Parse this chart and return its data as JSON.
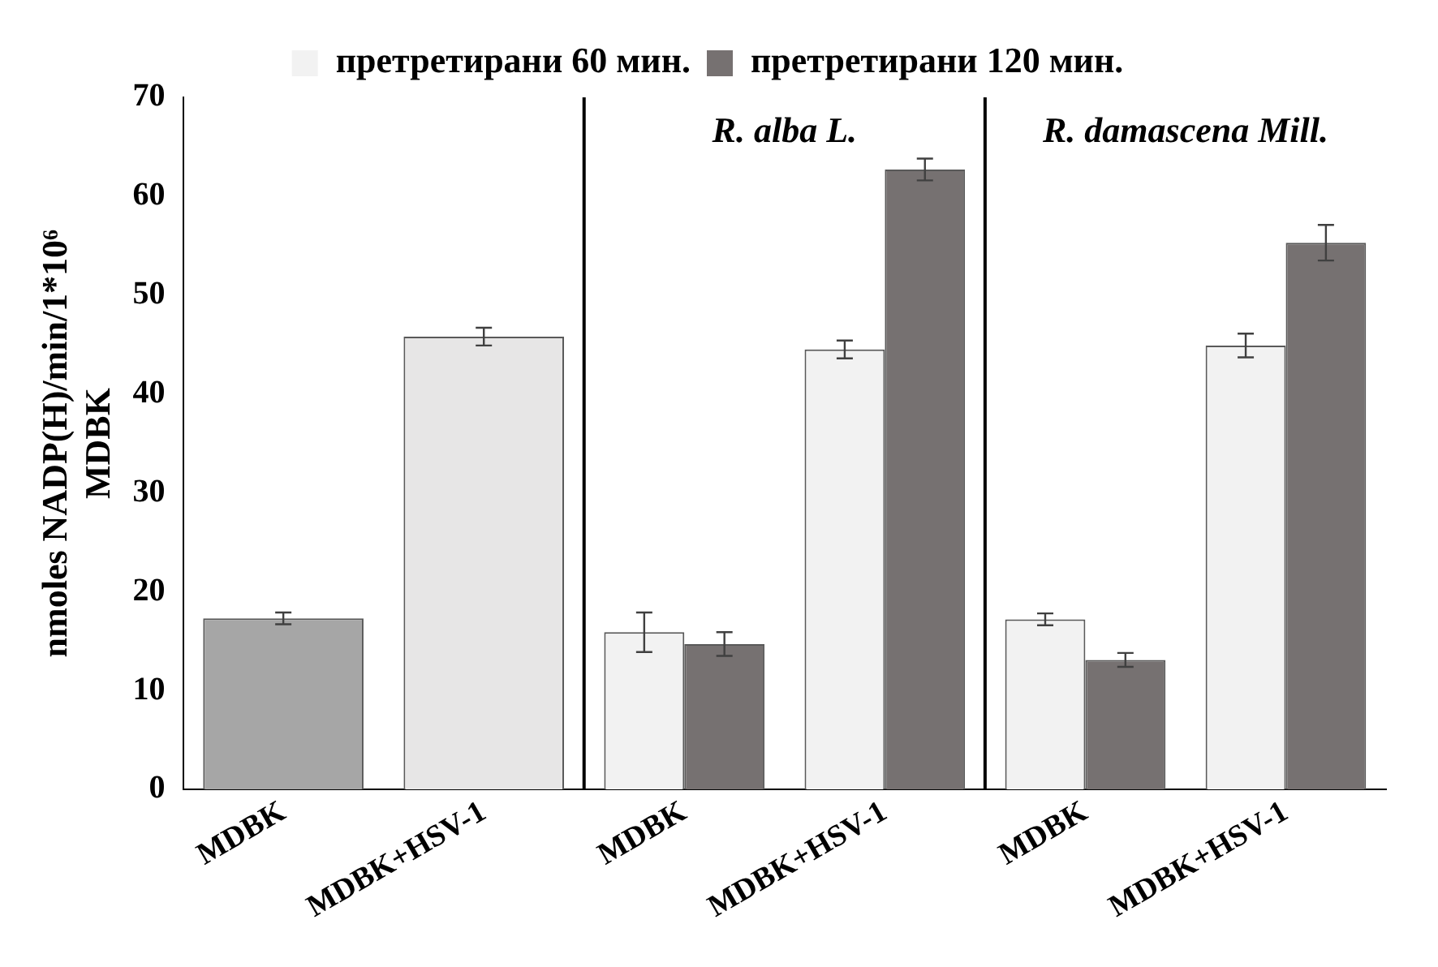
{
  "chart_data": {
    "type": "bar",
    "ylabel": "nmoles NADP(H)/min/1*10⁶ MDBK",
    "categories": [
      "MDBK",
      "MDBK+HSV-1",
      "MDBK",
      "MDBK+HSV-1",
      "MDBK",
      "MDBK+HSV-1"
    ],
    "series": [
      {
        "colors": [
          "#a6a6a6",
          "#e7e6e6",
          "#a6a6a6",
          "#a6a6a6",
          "#a6a6a6",
          "#a6a6a6"
        ],
        "values": [
          17.3,
          45.8,
          null,
          null,
          null,
          null
        ],
        "errors": [
          0.6,
          0.9,
          null,
          null,
          null,
          null
        ]
      },
      {
        "name": "претретирани 60 мин.",
        "color": "#f2f2f2",
        "values": [
          null,
          null,
          15.9,
          44.5,
          17.2,
          44.9
        ],
        "errors": [
          null,
          null,
          2.0,
          0.9,
          0.6,
          1.2
        ]
      },
      {
        "name": "претретирани 120 мин.",
        "color": "#767171",
        "values": [
          null,
          null,
          14.7,
          62.7,
          13.1,
          55.3
        ],
        "errors": [
          null,
          null,
          1.2,
          1.1,
          0.7,
          1.8
        ]
      }
    ],
    "ylim": [
      0,
      70
    ],
    "yticks": [
      0,
      10,
      20,
      30,
      40,
      50,
      60,
      70
    ],
    "grid": false,
    "legend": "top",
    "annotations": [
      "R. alba L.",
      "R. damascena Mill."
    ]
  }
}
